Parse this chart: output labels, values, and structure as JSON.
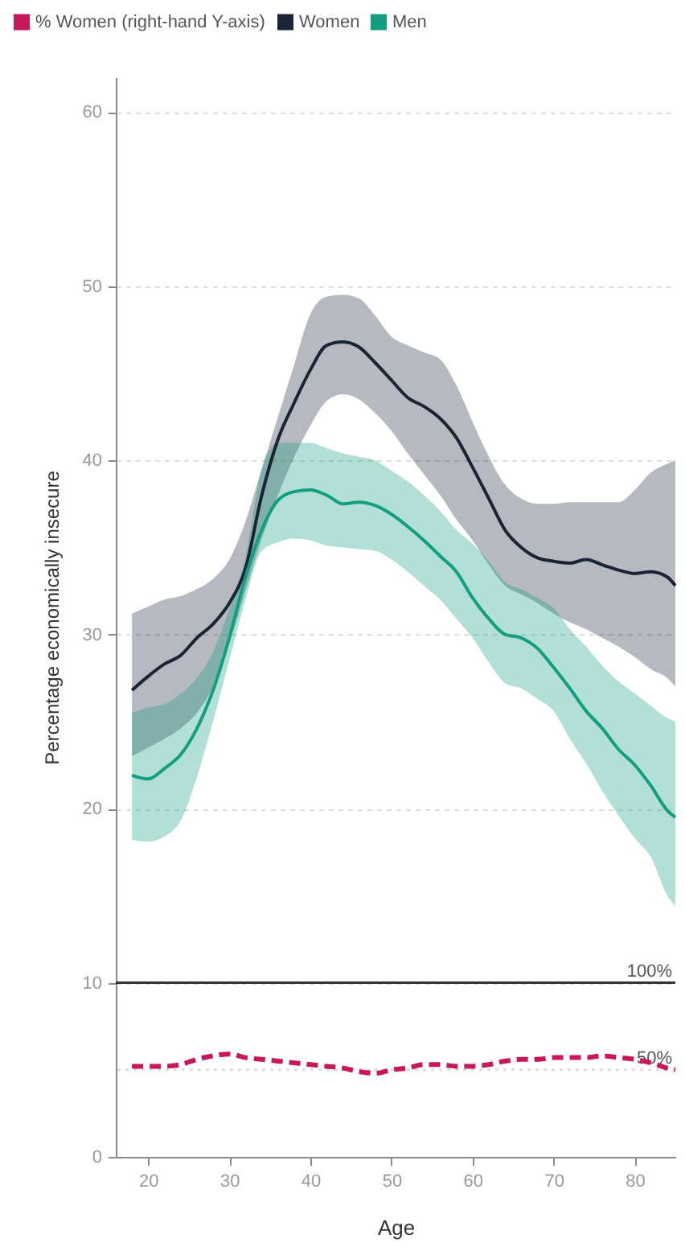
{
  "chart_data": {
    "type": "line",
    "xlabel": "Age",
    "ylabel": "Percentage economically insecure",
    "x": [
      18,
      20,
      22,
      24,
      26,
      28,
      30,
      32,
      34,
      36,
      38,
      40,
      42,
      44,
      46,
      48,
      50,
      52,
      54,
      56,
      58,
      60,
      62,
      64,
      66,
      68,
      70,
      72,
      74,
      76,
      78,
      80,
      82,
      84,
      85
    ],
    "series": [
      {
        "name": "% Women (right-hand Y-axis)",
        "color": "#c8175d",
        "axis": "y2",
        "line_style": "dashed",
        "values": [
          52,
          52,
          52,
          53,
          56,
          58,
          59,
          57,
          56,
          55,
          54,
          53,
          52,
          51,
          49,
          48,
          50,
          51,
          53,
          53,
          52,
          52,
          53,
          55,
          56,
          56,
          57,
          57,
          57,
          58,
          57,
          56,
          54,
          51,
          50
        ]
      },
      {
        "name": "Women",
        "color": "#1b2437",
        "values": [
          26.8,
          27.6,
          28.3,
          28.8,
          29.8,
          30.6,
          31.8,
          33.8,
          38.0,
          41.2,
          43.3,
          45.2,
          46.6,
          46.8,
          46.5,
          45.6,
          44.6,
          43.6,
          43.1,
          42.4,
          41.3,
          39.6,
          37.8,
          36.0,
          35.0,
          34.4,
          34.2,
          34.1,
          34.3,
          34.0,
          33.7,
          33.5,
          33.6,
          33.3,
          32.8
        ],
        "lower": [
          23.0,
          23.5,
          24.0,
          24.6,
          25.5,
          27.0,
          29.5,
          32.5,
          35.5,
          38.0,
          40.2,
          42.0,
          43.4,
          43.8,
          43.5,
          42.7,
          41.7,
          40.4,
          39.2,
          38.0,
          36.6,
          35.4,
          34.0,
          32.8,
          32.3,
          31.8,
          31.2,
          30.7,
          30.3,
          29.8,
          29.3,
          28.7,
          28.0,
          27.5,
          27.0
        ],
        "upper": [
          31.2,
          31.6,
          32.0,
          32.2,
          32.6,
          33.2,
          34.3,
          36.5,
          39.5,
          42.5,
          45.5,
          48.4,
          49.4,
          49.5,
          49.3,
          48.3,
          47.1,
          46.6,
          46.2,
          45.8,
          44.3,
          42.2,
          40.2,
          38.6,
          37.8,
          37.5,
          37.5,
          37.6,
          37.6,
          37.6,
          37.6,
          38.3,
          39.3,
          39.8,
          40.0
        ]
      },
      {
        "name": "Men",
        "color": "#129e80",
        "values": [
          21.9,
          21.7,
          22.3,
          23.1,
          24.6,
          26.8,
          29.8,
          33.3,
          36.0,
          37.7,
          38.2,
          38.3,
          38.0,
          37.5,
          37.6,
          37.4,
          36.9,
          36.2,
          35.4,
          34.5,
          33.6,
          32.1,
          30.9,
          30.0,
          29.8,
          29.2,
          28.1,
          26.9,
          25.6,
          24.6,
          23.4,
          22.5,
          21.3,
          19.9,
          19.5
        ],
        "lower": [
          18.2,
          18.1,
          18.4,
          19.3,
          21.8,
          25.0,
          28.5,
          32.0,
          34.8,
          35.3,
          35.5,
          35.4,
          35.1,
          35.0,
          34.9,
          34.8,
          34.3,
          33.6,
          32.8,
          32.0,
          30.9,
          29.8,
          28.4,
          27.2,
          26.9,
          26.3,
          25.6,
          24.0,
          22.6,
          21.0,
          19.6,
          18.3,
          17.2,
          15.0,
          14.4
        ],
        "upper": [
          25.5,
          25.8,
          26.0,
          26.6,
          27.5,
          29.0,
          31.5,
          34.5,
          39.5,
          41.0,
          41.0,
          41.0,
          40.7,
          40.4,
          40.2,
          40.0,
          39.4,
          38.8,
          38.0,
          37.1,
          36.0,
          35.2,
          34.2,
          33.0,
          32.6,
          32.1,
          31.5,
          30.3,
          29.3,
          28.2,
          27.3,
          26.6,
          25.9,
          25.2,
          25.0
        ]
      }
    ],
    "xlim": [
      16,
      85
    ],
    "ylim": [
      0,
      62
    ],
    "y2lim": [
      0,
      620
    ],
    "xticks": [
      20,
      30,
      40,
      50,
      60,
      70,
      80
    ],
    "yticks": [
      0,
      10,
      20,
      30,
      40,
      50,
      60
    ],
    "ref_lines": [
      {
        "axis": "y2",
        "value": 100,
        "label": "100%",
        "color": "#333333",
        "line_style": "solid"
      },
      {
        "axis": "y2",
        "value": 50,
        "label": "50%",
        "color": "#dddddd",
        "line_style": "dotted"
      }
    ],
    "grid": "y",
    "legend": "top"
  }
}
